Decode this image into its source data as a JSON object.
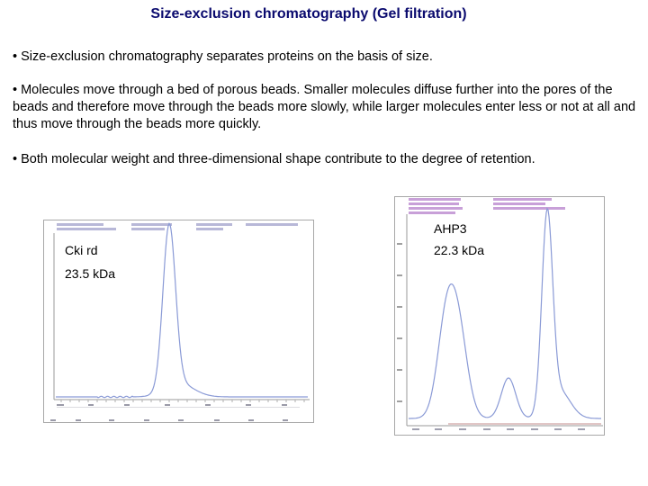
{
  "slide": {
    "title": "Size-exclusion chromatography (Gel filtration)",
    "bullets": [
      "• Size-exclusion chromatography separates proteins on the basis of size.",
      "• Molecules move through a bed of porous beads. Smaller molecules diffuse further into the pores of the beads and therefore move through the beads more slowly, while larger molecules enter less or not at all and thus move through the beads more quickly.",
      "• Both molecular weight and three-dimensional shape contribute to the degree of retention."
    ]
  },
  "figures": {
    "left": {
      "label_name": "Cki rd",
      "label_mw": "23.5 kDa",
      "trace_color": "#8a9ad6",
      "frame_color": "#a8a8a8"
    },
    "right": {
      "label_name": "AHP3",
      "label_mw": "22.3 kDa",
      "trace_color": "#8a9ad6",
      "frame_color": "#a8a8a8"
    }
  }
}
